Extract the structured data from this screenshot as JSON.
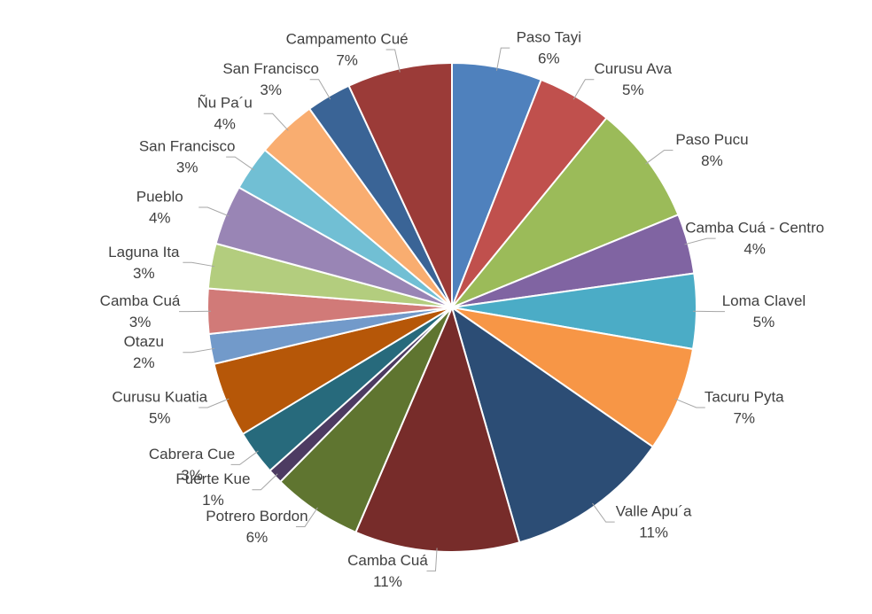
{
  "chart_data": {
    "type": "pie",
    "categories": [
      "Paso Tayi",
      "Curusu Ava",
      "Paso Pucu",
      "Camba Cuá - Centro",
      "Loma Clavel",
      "Tacuru Pyta",
      "Valle Apu´a",
      "Camba Cuá",
      "Potrero Bordon",
      "Fuerte Kue",
      "Cabrera Cue",
      "Curusu Kuatia",
      "Otazu",
      "Camba Cuá",
      "Laguna Ita",
      "Pueblo",
      "San Francisco",
      "Ñu Pa´u",
      "San Francisco",
      "Campamento Cué"
    ],
    "values": [
      6,
      5,
      8,
      4,
      5,
      7,
      11,
      11,
      6,
      1,
      3,
      5,
      2,
      3,
      3,
      4,
      3,
      4,
      3,
      7
    ],
    "value_labels": [
      "6%",
      "5%",
      "8%",
      "4%",
      "5%",
      "7%",
      "11%",
      "11%",
      "6%",
      "1%",
      "3%",
      "5%",
      "2%",
      "3%",
      "3%",
      "4%",
      "3%",
      "4%",
      "3%",
      "7%"
    ],
    "colors": [
      "#4f81bd",
      "#c0504d",
      "#9bbb59",
      "#8064a2",
      "#4bacc6",
      "#f79646",
      "#2c4d75",
      "#772c2a",
      "#5f7530",
      "#4d3b62",
      "#276a7c",
      "#b65708",
      "#729aca",
      "#d17a78",
      "#b3cd7e",
      "#9985b5",
      "#71bfd4",
      "#f9ad70",
      "#3a6496",
      "#9b3b38"
    ]
  }
}
